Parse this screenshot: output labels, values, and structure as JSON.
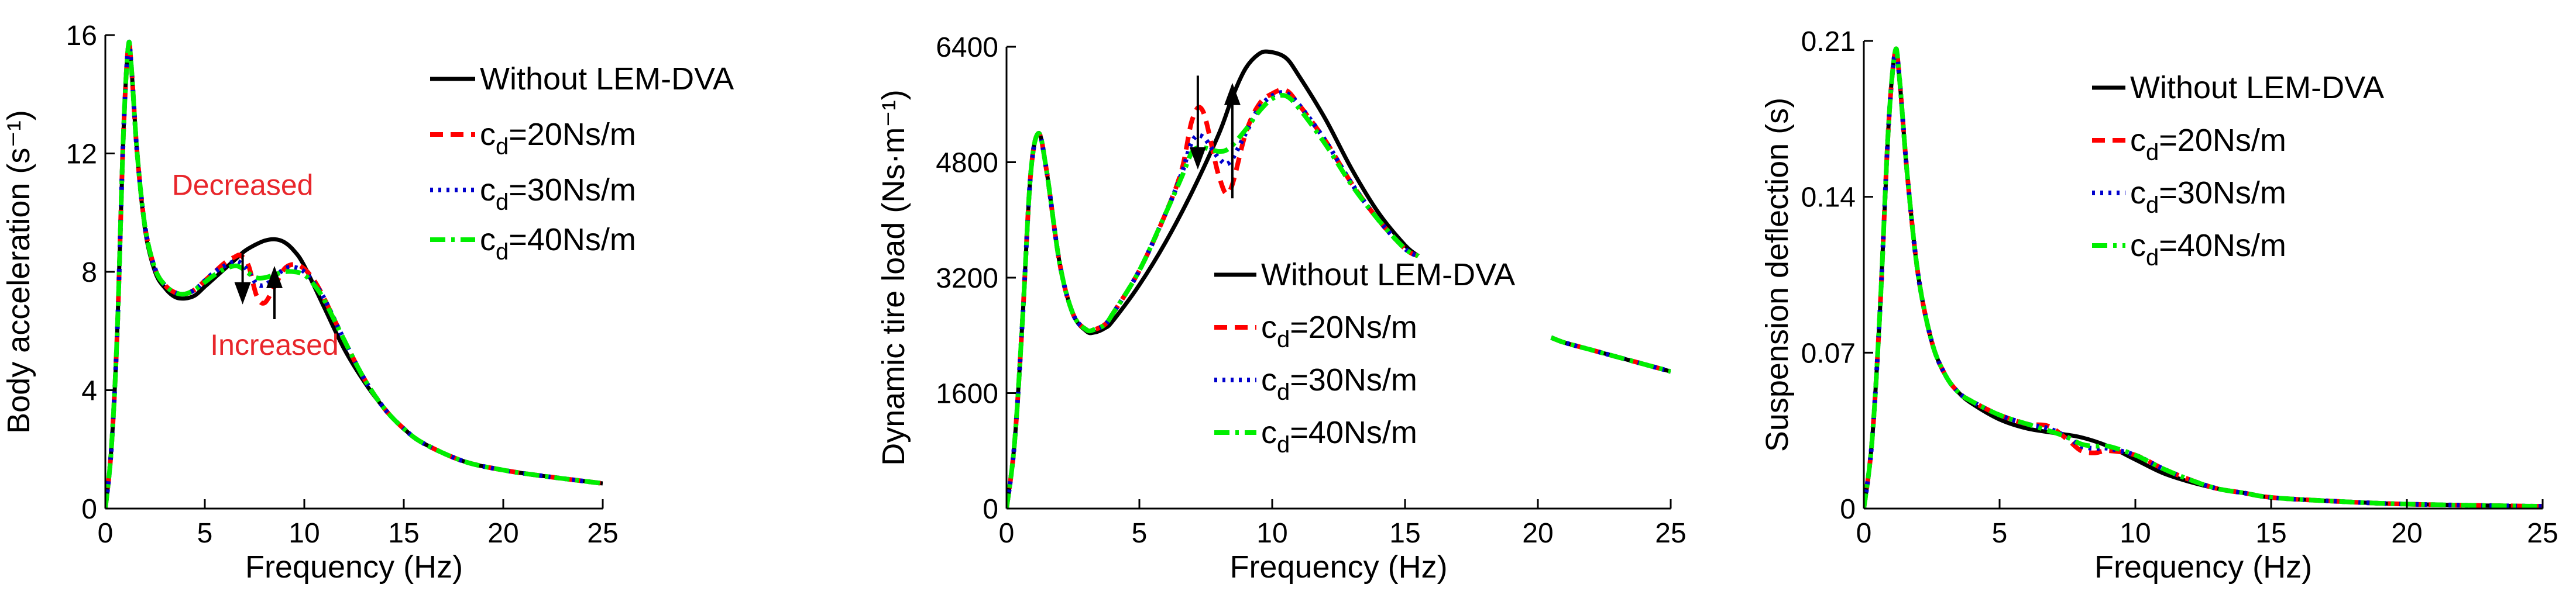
{
  "colors": {
    "without": "#000000",
    "cd20": "#ff0000",
    "cd30": "#0000cc",
    "cd40": "#00ee00",
    "annotation": "#e8262b"
  },
  "chart_data": [
    {
      "type": "line",
      "title": "",
      "xlabel": "Frequency (Hz)",
      "ylabel": "Body acceleration (s⁻¹)",
      "xlim": [
        0,
        25
      ],
      "ylim": [
        0,
        16
      ],
      "xticks": [
        0,
        5,
        10,
        15,
        20,
        25
      ],
      "yticks": [
        0,
        4,
        8,
        12,
        16
      ],
      "xtick_labels": [
        "0",
        "5",
        "10",
        "15",
        "20",
        "25"
      ],
      "ytick_labels": [
        "0",
        "4",
        "8",
        "12",
        "16"
      ],
      "grid": false,
      "legend_position": "top-right",
      "legend": [
        "Without LEM-DVA",
        "c_d=20Ns/m",
        "c_d=30Ns/m",
        "c_d=40Ns/m"
      ],
      "annotations": [
        {
          "text": "Decreased",
          "x": 6.9,
          "y": 10.6,
          "arrow_from": [
            6.9,
            8.6
          ],
          "arrow_to": [
            6.9,
            6.9
          ],
          "direction": "down"
        },
        {
          "text": "Increased",
          "x": 8.5,
          "y": 5.2,
          "arrow_from": [
            8.5,
            6.4
          ],
          "arrow_to": [
            8.5,
            8.2
          ],
          "direction": "up"
        }
      ],
      "series": [
        {
          "name": "Without LEM-DVA",
          "style": "solid",
          "x": [
            0,
            0.3,
            0.6,
            0.9,
            1.15,
            1.3,
            1.6,
            2.0,
            2.5,
            3.0,
            3.5,
            4.0,
            4.5,
            5.0,
            5.5,
            6.0,
            6.5,
            7.0,
            7.5,
            8.0,
            8.5,
            9.0,
            9.5,
            10.0,
            11,
            12,
            13,
            14,
            15,
            16,
            18,
            20,
            22,
            25
          ],
          "y": [
            0,
            2.0,
            6.0,
            12.5,
            15.6,
            15.0,
            12.0,
            9.4,
            8.0,
            7.45,
            7.15,
            7.1,
            7.2,
            7.5,
            7.8,
            8.1,
            8.4,
            8.7,
            8.9,
            9.05,
            9.1,
            9.0,
            8.7,
            8.2,
            6.8,
            5.4,
            4.3,
            3.4,
            2.7,
            2.2,
            1.6,
            1.3,
            1.1,
            0.85
          ]
        },
        {
          "name": "c_d=20Ns/m",
          "style": "dashed",
          "x": [
            0,
            0.3,
            0.6,
            0.9,
            1.15,
            1.3,
            1.6,
            2.0,
            2.5,
            3.0,
            3.5,
            4.0,
            4.5,
            5.0,
            5.5,
            6.0,
            6.5,
            6.8,
            7.2,
            7.6,
            8.0,
            8.5,
            9.0,
            9.5,
            10.0,
            10.5,
            11,
            12,
            13,
            14,
            15,
            16,
            18,
            20,
            22,
            25
          ],
          "y": [
            0,
            2.0,
            6.0,
            12.5,
            15.6,
            15.0,
            12.0,
            9.5,
            8.1,
            7.55,
            7.3,
            7.25,
            7.4,
            7.7,
            8.0,
            8.3,
            8.5,
            8.55,
            8.2,
            7.2,
            6.95,
            7.5,
            8.1,
            8.25,
            8.1,
            7.7,
            7.1,
            5.7,
            4.4,
            3.4,
            2.7,
            2.2,
            1.6,
            1.3,
            1.1,
            0.85
          ]
        },
        {
          "name": "c_d=30Ns/m",
          "style": "dotted",
          "x": [
            0,
            0.3,
            0.6,
            0.9,
            1.15,
            1.3,
            1.6,
            2.0,
            2.5,
            3.0,
            3.5,
            4.0,
            4.5,
            5.0,
            5.5,
            6.0,
            6.5,
            6.8,
            7.2,
            7.6,
            8.0,
            8.5,
            9.0,
            9.5,
            10.0,
            10.5,
            11,
            12,
            13,
            14,
            15,
            16,
            18,
            20,
            22,
            25
          ],
          "y": [
            0,
            2.0,
            6.0,
            12.5,
            15.6,
            15.0,
            12.0,
            9.5,
            8.1,
            7.55,
            7.3,
            7.25,
            7.4,
            7.7,
            8.0,
            8.2,
            8.35,
            8.3,
            8.0,
            7.6,
            7.55,
            7.8,
            8.1,
            8.15,
            8.0,
            7.6,
            7.1,
            5.7,
            4.4,
            3.4,
            2.7,
            2.2,
            1.6,
            1.3,
            1.1,
            0.85
          ]
        },
        {
          "name": "c_d=40Ns/m",
          "style": "dashdot",
          "x": [
            0,
            0.3,
            0.6,
            0.9,
            1.15,
            1.3,
            1.6,
            2.0,
            2.5,
            3.0,
            3.5,
            4.0,
            4.5,
            5.0,
            5.5,
            6.0,
            6.5,
            6.8,
            7.2,
            7.6,
            8.0,
            8.5,
            9.0,
            9.5,
            10.0,
            10.5,
            11,
            12,
            13,
            14,
            15,
            16,
            18,
            20,
            22,
            25
          ],
          "y": [
            0,
            2.0,
            6.0,
            12.5,
            15.6,
            15.0,
            12.0,
            9.5,
            8.1,
            7.55,
            7.3,
            7.25,
            7.4,
            7.65,
            7.9,
            8.1,
            8.2,
            8.15,
            7.95,
            7.8,
            7.8,
            7.9,
            8.0,
            8.0,
            7.9,
            7.55,
            7.05,
            5.7,
            4.4,
            3.4,
            2.7,
            2.2,
            1.6,
            1.3,
            1.1,
            0.85
          ]
        }
      ]
    },
    {
      "type": "line",
      "title": "",
      "xlabel": "Frequency (Hz)",
      "ylabel": "Dynamic tire load (Ns·m⁻¹)",
      "xlim": [
        0,
        25
      ],
      "ylim": [
        0,
        6400
      ],
      "xticks": [
        0,
        5,
        10,
        15,
        20,
        25
      ],
      "yticks": [
        0,
        1600,
        3200,
        4800,
        6400
      ],
      "xtick_labels": [
        "0",
        "5",
        "10",
        "15",
        "20",
        "25"
      ],
      "ytick_labels": [
        "0",
        "1600",
        "3200",
        "4800",
        "6400"
      ],
      "grid": false,
      "legend_position": "center-right",
      "legend": [
        "Without LEM-DVA",
        "c_d=20Ns/m",
        "c_d=30Ns/m",
        "c_d=40Ns/m"
      ],
      "annotations": [
        {
          "text": "",
          "arrow_from": [
            7.2,
            6000
          ],
          "arrow_to": [
            7.2,
            4700
          ],
          "direction": "down"
        },
        {
          "text": "",
          "arrow_from": [
            8.5,
            4300
          ],
          "arrow_to": [
            8.5,
            5900
          ],
          "direction": "up"
        }
      ],
      "series": [
        {
          "name": "Without LEM-DVA",
          "style": "solid",
          "x": [
            0,
            0.3,
            0.6,
            0.9,
            1.2,
            1.5,
            2.0,
            2.5,
            3.0,
            3.3,
            3.7,
            4.0,
            5.0,
            6.0,
            7.0,
            8.0,
            8.5,
            9.0,
            9.5,
            9.9,
            10.5,
            11,
            12,
            13,
            14,
            15,
            15.5
          ],
          "y": [
            0,
            900,
            2600,
            4600,
            5200,
            4700,
            3400,
            2700,
            2460,
            2440,
            2500,
            2600,
            3100,
            3700,
            4400,
            5200,
            5700,
            6100,
            6300,
            6330,
            6250,
            6000,
            5400,
            4700,
            4100,
            3650,
            3500
          ]
        },
        {
          "name": "c_d=20Ns/m",
          "style": "dashed",
          "x": [
            0,
            0.3,
            0.6,
            0.9,
            1.2,
            1.5,
            2.0,
            2.5,
            3.0,
            3.3,
            3.7,
            4.0,
            5.0,
            6.0,
            6.6,
            7.0,
            7.4,
            8.0,
            8.4,
            9.0,
            9.5,
            10.0,
            10.5,
            11,
            12,
            13,
            14,
            15,
            15.5
          ],
          "y": [
            0,
            900,
            2600,
            4600,
            5200,
            4700,
            3400,
            2700,
            2480,
            2480,
            2550,
            2700,
            3300,
            4100,
            4700,
            5400,
            5500,
            4600,
            4400,
            5200,
            5600,
            5750,
            5800,
            5600,
            5100,
            4500,
            4000,
            3600,
            3500
          ]
        },
        {
          "name": "c_d=30Ns/m",
          "style": "dotted",
          "x": [
            0,
            0.3,
            0.6,
            0.9,
            1.2,
            1.5,
            2.0,
            2.5,
            3.0,
            3.3,
            3.7,
            4.0,
            5.0,
            6.0,
            6.6,
            7.0,
            7.4,
            8.0,
            8.4,
            9.0,
            9.5,
            10.0,
            10.5,
            11,
            12,
            13,
            14,
            15,
            15.5
          ],
          "y": [
            0,
            900,
            2600,
            4600,
            5200,
            4700,
            3400,
            2700,
            2480,
            2480,
            2550,
            2700,
            3300,
            4100,
            4650,
            5100,
            5150,
            4850,
            4800,
            5200,
            5550,
            5720,
            5760,
            5600,
            5100,
            4500,
            4000,
            3600,
            3500
          ]
        },
        {
          "name": "c_d=40Ns/m",
          "style": "dashdot",
          "x": [
            0,
            0.3,
            0.6,
            0.9,
            1.2,
            1.5,
            2.0,
            2.5,
            3.0,
            3.3,
            3.7,
            4.0,
            5.0,
            6.0,
            6.6,
            7.0,
            7.4,
            8.0,
            8.4,
            9.0,
            9.5,
            10.0,
            10.5,
            11,
            12,
            13,
            14,
            15,
            15.5
          ],
          "y": [
            0,
            900,
            2600,
            4600,
            5200,
            4700,
            3400,
            2700,
            2480,
            2480,
            2550,
            2700,
            3300,
            4100,
            4600,
            4950,
            5000,
            4950,
            5000,
            5250,
            5500,
            5680,
            5720,
            5550,
            5050,
            4480,
            4000,
            3600,
            3500
          ]
        },
        {
          "name": "Without LEM-DVA (continued)",
          "style": "solid",
          "x": [
            20.5,
            21,
            22,
            23,
            24,
            25
          ],
          "y": [
            2370,
            2300,
            2200,
            2100,
            2000,
            1900
          ]
        },
        {
          "name": "c_d=20Ns/m (continued)",
          "style": "dashed",
          "x": [
            20.5,
            21,
            22,
            23,
            24,
            25
          ],
          "y": [
            2370,
            2300,
            2200,
            2100,
            2000,
            1900
          ]
        },
        {
          "name": "c_d=30Ns/m (continued)",
          "style": "dotted",
          "x": [
            20.5,
            21,
            22,
            23,
            24,
            25
          ],
          "y": [
            2370,
            2300,
            2200,
            2100,
            2000,
            1900
          ]
        },
        {
          "name": "c_d=40Ns/m (continued)",
          "style": "dashdot",
          "x": [
            20.5,
            21,
            22,
            23,
            24,
            25
          ],
          "y": [
            2370,
            2300,
            2200,
            2100,
            2000,
            1900
          ]
        }
      ]
    },
    {
      "type": "line",
      "title": "",
      "xlabel": "Frequency (Hz)",
      "ylabel": "Suspension deflection (s)",
      "xlim": [
        0,
        25
      ],
      "ylim": [
        0,
        0.21
      ],
      "xticks": [
        0,
        5,
        10,
        15,
        20,
        25
      ],
      "yticks": [
        0,
        0.07,
        0.14,
        0.21
      ],
      "xtick_labels": [
        "0",
        "5",
        "10",
        "15",
        "20",
        "25"
      ],
      "ytick_labels": [
        "0",
        "0.07",
        "0.14",
        "0.21"
      ],
      "grid": false,
      "legend_position": "top-right",
      "legend": [
        "Without LEM-DVA",
        "c_d=20Ns/m",
        "c_d=30Ns/m",
        "c_d=40Ns/m"
      ],
      "annotations": [],
      "series": [
        {
          "name": "Without LEM-DVA",
          "style": "solid",
          "x": [
            0,
            0.3,
            0.6,
            0.9,
            1.15,
            1.3,
            1.6,
            2.0,
            2.5,
            3.0,
            3.5,
            4.0,
            5.0,
            6.0,
            7.0,
            8.0,
            9.0,
            10.0,
            11,
            12,
            13,
            14,
            15,
            17,
            20,
            25
          ],
          "y": [
            0,
            0.03,
            0.09,
            0.17,
            0.205,
            0.195,
            0.15,
            0.105,
            0.075,
            0.06,
            0.052,
            0.047,
            0.04,
            0.036,
            0.034,
            0.032,
            0.028,
            0.022,
            0.016,
            0.012,
            0.009,
            0.007,
            0.005,
            0.0035,
            0.002,
            0.001
          ]
        },
        {
          "name": "c_d=20Ns/m",
          "style": "dashed",
          "x": [
            0,
            0.3,
            0.6,
            0.9,
            1.15,
            1.3,
            1.6,
            2.0,
            2.5,
            3.0,
            3.5,
            4.0,
            5.0,
            6.0,
            6.8,
            7.5,
            8.0,
            8.5,
            9.0,
            10.0,
            11,
            12,
            13,
            14,
            15,
            17,
            20,
            25
          ],
          "y": [
            0,
            0.03,
            0.09,
            0.17,
            0.205,
            0.195,
            0.15,
            0.105,
            0.075,
            0.06,
            0.052,
            0.048,
            0.042,
            0.038,
            0.037,
            0.031,
            0.026,
            0.025,
            0.026,
            0.024,
            0.018,
            0.013,
            0.009,
            0.007,
            0.005,
            0.0035,
            0.002,
            0.001
          ]
        },
        {
          "name": "c_d=30Ns/m",
          "style": "dotted",
          "x": [
            0,
            0.3,
            0.6,
            0.9,
            1.15,
            1.3,
            1.6,
            2.0,
            2.5,
            3.0,
            3.5,
            4.0,
            5.0,
            6.0,
            6.8,
            7.5,
            8.0,
            8.5,
            9.0,
            10.0,
            11,
            12,
            13,
            14,
            15,
            17,
            20,
            25
          ],
          "y": [
            0,
            0.03,
            0.09,
            0.17,
            0.205,
            0.195,
            0.15,
            0.105,
            0.075,
            0.06,
            0.052,
            0.048,
            0.042,
            0.038,
            0.036,
            0.032,
            0.028,
            0.027,
            0.027,
            0.024,
            0.018,
            0.013,
            0.009,
            0.007,
            0.005,
            0.0035,
            0.002,
            0.001
          ]
        },
        {
          "name": "c_d=40Ns/m",
          "style": "dashdot",
          "x": [
            0,
            0.3,
            0.6,
            0.9,
            1.15,
            1.3,
            1.6,
            2.0,
            2.5,
            3.0,
            3.5,
            4.0,
            5.0,
            6.0,
            6.8,
            7.5,
            8.0,
            8.5,
            9.0,
            10.0,
            11,
            12,
            13,
            14,
            15,
            17,
            20,
            25
          ],
          "y": [
            0,
            0.03,
            0.09,
            0.17,
            0.205,
            0.195,
            0.15,
            0.105,
            0.075,
            0.06,
            0.052,
            0.048,
            0.042,
            0.038,
            0.035,
            0.032,
            0.029,
            0.028,
            0.028,
            0.024,
            0.018,
            0.013,
            0.009,
            0.007,
            0.005,
            0.0035,
            0.002,
            0.001
          ]
        }
      ]
    }
  ]
}
